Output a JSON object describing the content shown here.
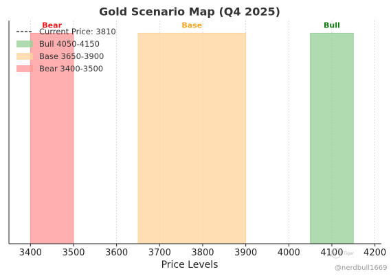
{
  "chart_data": {
    "type": "bar",
    "title": "Gold Scenario Map (Q4 2025)",
    "xlabel": "Price Levels",
    "ylabel": "",
    "xlim": [
      3350,
      4215
    ],
    "ylim": [
      0,
      1.06
    ],
    "x_ticks": [
      3400,
      3500,
      3600,
      3700,
      3800,
      3900,
      4000,
      4100,
      4200
    ],
    "grid": "vertical dashed",
    "legend_position": "top-left",
    "current_price": {
      "legend": "Current Price: 3810",
      "value": 3810,
      "color": "#111111",
      "style": "dashed"
    },
    "ranges": [
      {
        "label": "Bear",
        "legend": "Bear 3400-3500",
        "start": 3400,
        "end": 3500,
        "height": 1.0,
        "color": "#ff9999",
        "text_color": "#e8161b"
      },
      {
        "label": "Base",
        "legend": "Base 3650-3900",
        "start": 3650,
        "end": 3900,
        "height": 1.0,
        "color": "#ffd59e",
        "text_color": "#f4a81e"
      },
      {
        "label": "Bull",
        "legend": "Bull 4050-4150",
        "start": 4050,
        "end": 4150,
        "height": 1.0,
        "color": "#9ad09a",
        "text_color": "#117a11"
      }
    ]
  },
  "watermark": {
    "handle": "@nerdbull1669",
    "brand": "Tiger"
  }
}
